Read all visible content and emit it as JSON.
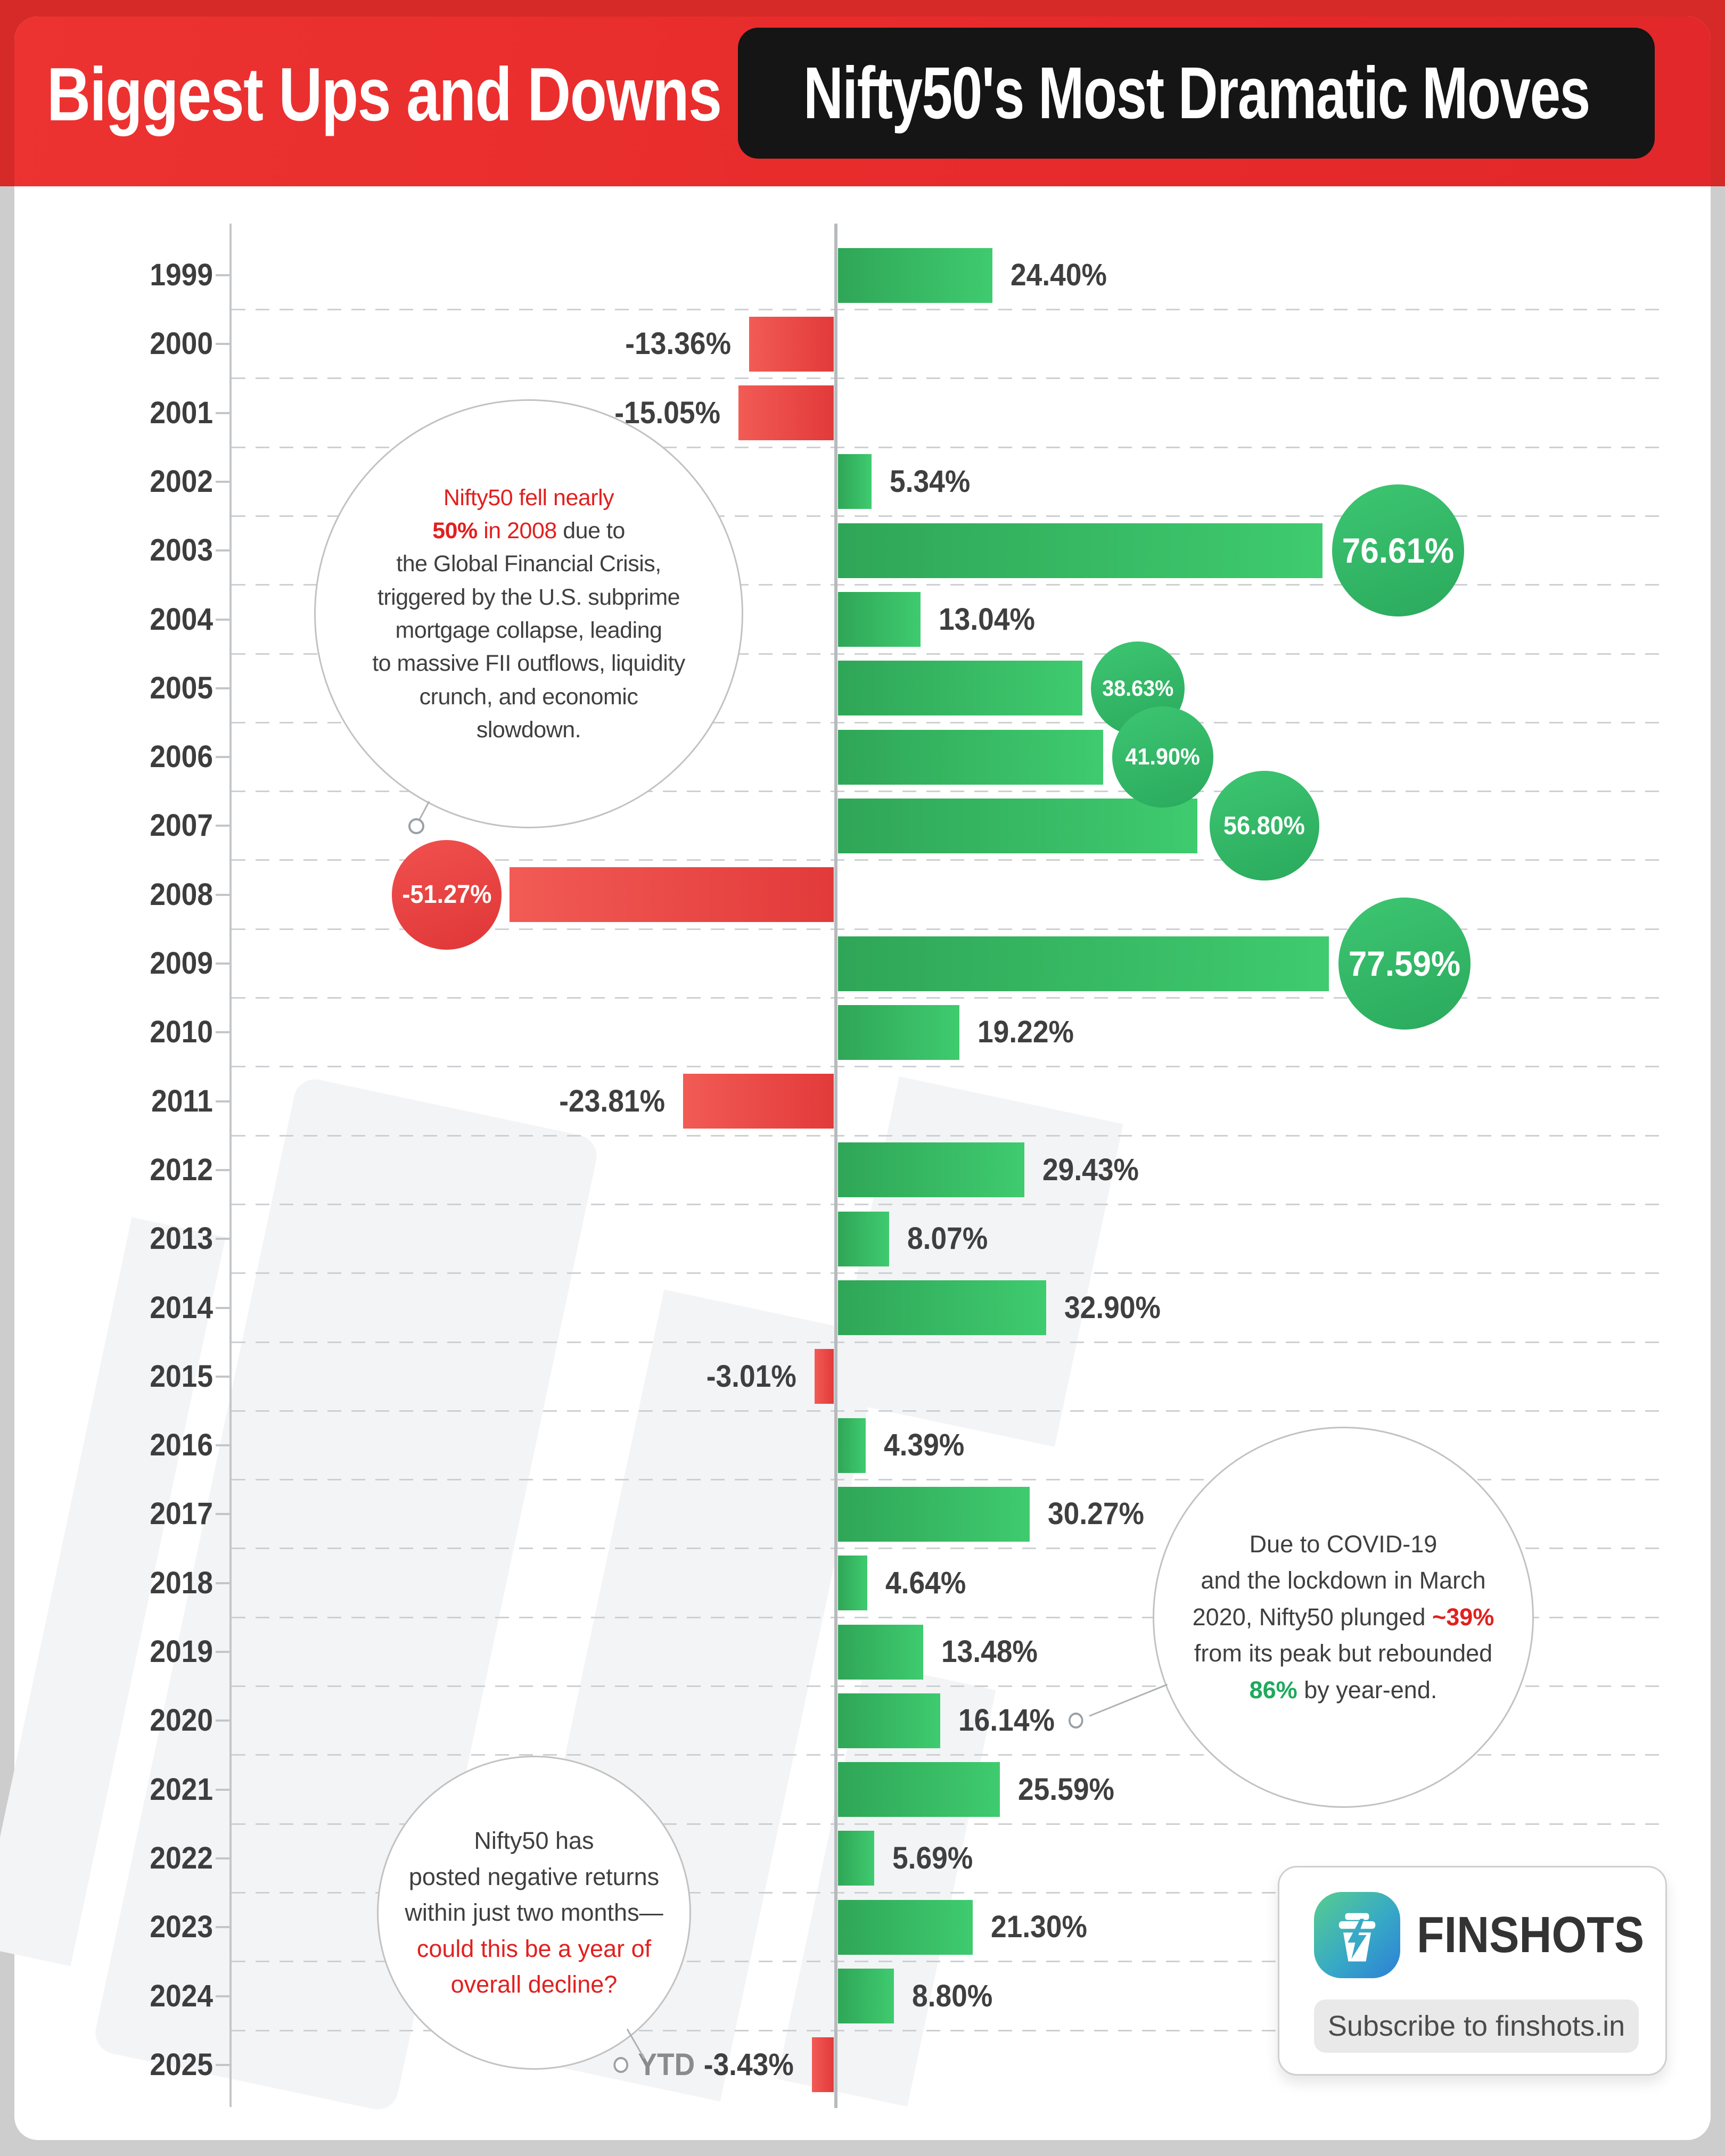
{
  "header": {
    "title_left": "Biggest Ups and Downs",
    "title_right": "Nifty50's Most Dramatic Moves"
  },
  "chart_data": {
    "type": "bar",
    "orientation": "horizontal",
    "title": "Nifty50 yearly returns by calendar year",
    "x_unit": "percent",
    "categories": [
      "1999",
      "2000",
      "2001",
      "2002",
      "2003",
      "2004",
      "2005",
      "2006",
      "2007",
      "2008",
      "2009",
      "2010",
      "2011",
      "2012",
      "2013",
      "2014",
      "2015",
      "2016",
      "2017",
      "2018",
      "2019",
      "2020",
      "2021",
      "2022",
      "2023",
      "2024",
      "2025"
    ],
    "values": [
      24.4,
      -13.36,
      -15.05,
      5.34,
      76.61,
      13.04,
      38.63,
      41.9,
      56.8,
      -51.27,
      77.59,
      19.22,
      -23.81,
      29.43,
      8.07,
      32.9,
      -3.01,
      4.39,
      30.27,
      4.64,
      13.48,
      16.14,
      25.59,
      5.69,
      21.3,
      8.8,
      -3.43
    ],
    "bar_labels": [
      "24.40%",
      "-13.36%",
      "-15.05%",
      "5.34%",
      "76.61%",
      "13.04%",
      "38.63%",
      "41.90%",
      "56.80%",
      "-51.27%",
      "77.59%",
      "19.22%",
      "-23.81%",
      "29.43%",
      "8.07%",
      "32.90%",
      "-3.01%",
      "4.39%",
      "30.27%",
      "4.64%",
      "13.48%",
      "16.14%",
      "25.59%",
      "5.69%",
      "21.30%",
      "8.80%",
      "-3.43%"
    ],
    "ytd_prefix": "YTD",
    "ytd_year": "2025",
    "circled_years": [
      "2003",
      "2005",
      "2006",
      "2007",
      "2008",
      "2009"
    ],
    "positive_color": "#34b160",
    "negative_color": "#e64545",
    "grid": "dashed-horizontal",
    "zero_baseline": true
  },
  "annotations": {
    "gfc": {
      "lines": [
        [
          {
            "t": "Nifty50 fell nearly",
            "c": "red"
          }
        ],
        [
          {
            "t": "50%",
            "c": "red",
            "b": true
          },
          {
            "t": " in 2008",
            "c": "red"
          },
          {
            "t": " due to",
            "c": "dark"
          }
        ],
        [
          {
            "t": "the Global Financial Crisis,",
            "c": "dark"
          }
        ],
        [
          {
            "t": "triggered by the U.S. subprime",
            "c": "dark"
          }
        ],
        [
          {
            "t": "mortgage collapse, leading",
            "c": "dark"
          }
        ],
        [
          {
            "t": "to massive FII outflows, liquidity",
            "c": "dark"
          }
        ],
        [
          {
            "t": "crunch, and economic",
            "c": "dark"
          }
        ],
        [
          {
            "t": "slowdown.",
            "c": "dark"
          }
        ]
      ]
    },
    "covid": {
      "lines": [
        [
          {
            "t": "Due to COVID-19",
            "c": "dark"
          }
        ],
        [
          {
            "t": "and the lockdown in March",
            "c": "dark"
          }
        ],
        [
          {
            "t": "2020, Nifty50 plunged ",
            "c": "dark"
          },
          {
            "t": "~39%",
            "c": "red",
            "b": true
          }
        ],
        [
          {
            "t": "from its peak but rebounded",
            "c": "dark"
          }
        ],
        [
          {
            "t": "86%",
            "c": "green",
            "b": true
          },
          {
            "t": " by year-end.",
            "c": "dark"
          }
        ]
      ]
    },
    "ytd": {
      "lines": [
        [
          {
            "t": "Nifty50 has",
            "c": "dark"
          }
        ],
        [
          {
            "t": "posted negative returns",
            "c": "dark"
          }
        ],
        [
          {
            "t": "within just two months—",
            "c": "dark"
          }
        ],
        [
          {
            "t": "could this be a year of",
            "c": "red"
          }
        ],
        [
          {
            "t": "overall decline?",
            "c": "red"
          }
        ]
      ]
    }
  },
  "footer": {
    "brand": "FINSHOTS",
    "subscribe": "Subscribe to finshots.in"
  }
}
